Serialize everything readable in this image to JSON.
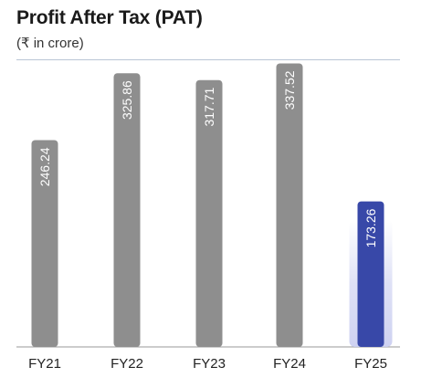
{
  "header": {
    "title": "Profit After Tax (PAT)",
    "subtitle": "(₹ in crore)"
  },
  "colors": {
    "bar_default": "#8e8e8e",
    "bar_highlight": "#3848a8",
    "axis": "#9a9a9a",
    "label_text": "#ffffff",
    "tick_text": "#222222"
  },
  "chart_data": {
    "type": "bar",
    "title": "Profit After Tax (PAT)",
    "subtitle": "(₹ in crore)",
    "categories": [
      "FY21",
      "FY22",
      "FY23",
      "FY24",
      "FY25"
    ],
    "values": [
      246.24,
      325.86,
      317.71,
      337.52,
      173.26
    ],
    "value_labels": [
      "246.24",
      "325.86",
      "317.71",
      "337.52",
      "173.26"
    ],
    "highlight_index": 4,
    "ylim": [
      0,
      350
    ],
    "grid": false,
    "legend": "none",
    "value_label_orientation": "vertical"
  }
}
